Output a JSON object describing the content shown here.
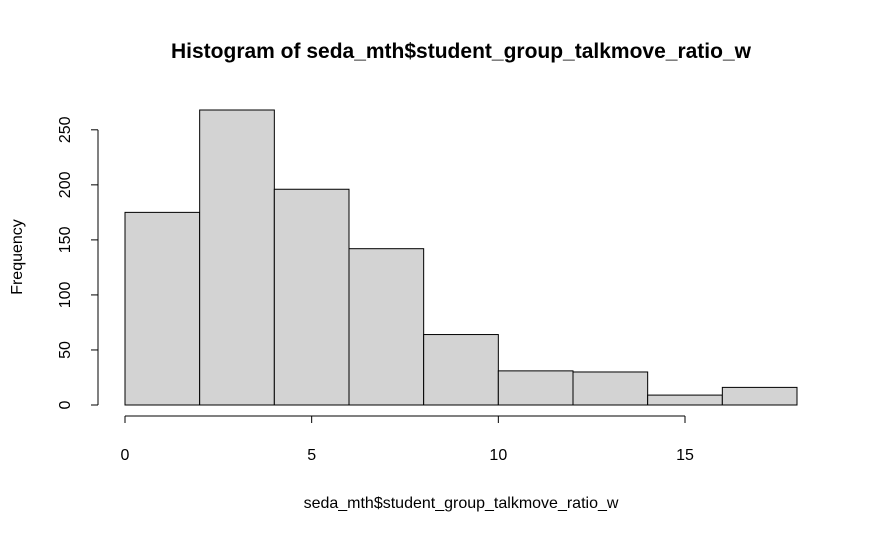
{
  "chart_data": {
    "type": "bar",
    "title": "Histogram of seda_mth$student_group_talkmove_ratio_w",
    "xlabel": "seda_mth$student_group_talkmove_ratio_w",
    "ylabel": "Frequency",
    "bins": [
      {
        "x0": 0,
        "x1": 2,
        "count": 175
      },
      {
        "x0": 2,
        "x1": 4,
        "count": 268
      },
      {
        "x0": 4,
        "x1": 6,
        "count": 196
      },
      {
        "x0": 6,
        "x1": 8,
        "count": 142
      },
      {
        "x0": 8,
        "x1": 10,
        "count": 64
      },
      {
        "x0": 10,
        "x1": 12,
        "count": 31
      },
      {
        "x0": 12,
        "x1": 14,
        "count": 30
      },
      {
        "x0": 14,
        "x1": 16,
        "count": 9
      },
      {
        "x0": 16,
        "x1": 18,
        "count": 16
      }
    ],
    "xticks": [
      "0",
      "5",
      "10",
      "15"
    ],
    "yticks": [
      "0",
      "50",
      "100",
      "150",
      "200",
      "250"
    ],
    "xlim": [
      0,
      18
    ],
    "ylim": [
      0,
      268
    ],
    "grid": false,
    "legend": "none",
    "colors": {
      "bar_fill": "#d3d3d3",
      "bar_stroke": "#000000"
    }
  }
}
